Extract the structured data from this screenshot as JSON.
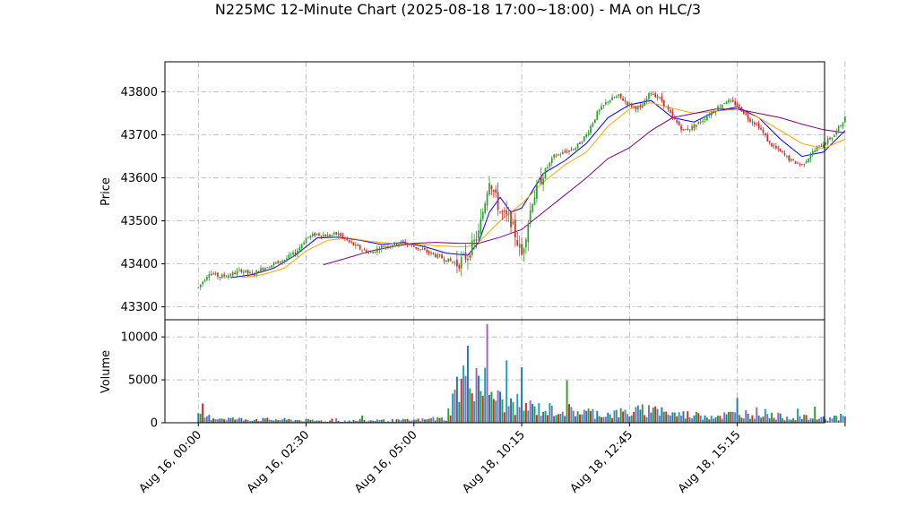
{
  "chart_data": {
    "type": "candlestick",
    "title": "N225MC 12-Minute Chart (2025-08-18 17:00~18:00) - MA on HLC/3",
    "price_panel": {
      "ylabel": "Price",
      "ylim": [
        43270,
        43870
      ],
      "yticks": [
        43300,
        43400,
        43500,
        43600,
        43700,
        43800
      ],
      "ytick_labels": [
        "43300",
        "43400",
        "43500",
        "43600",
        "43700",
        "43800"
      ]
    },
    "volume_panel": {
      "ylabel": "Volume",
      "ylim": [
        0,
        12000
      ],
      "yticks": [
        0,
        5000,
        10000
      ],
      "ytick_labels": [
        "0",
        "5000",
        "10000"
      ]
    },
    "xaxis": {
      "xlim": [
        -15.5,
        290.5
      ],
      "ticks": [
        0,
        50,
        100,
        150,
        200,
        250,
        300
      ],
      "tick_labels": [
        "Aug 16, 00:00",
        "Aug 16, 02:30",
        "Aug 16, 05:00",
        "Aug 18, 10:15",
        "Aug 18, 12:45",
        "Aug 18, 15:15",
        ""
      ]
    },
    "grid": true,
    "colors": {
      "up": "#2ca02c",
      "down": "#d62728",
      "ma_short": "#0000ff",
      "ma_mid": "#ffa500",
      "ma_long": "#800080",
      "volume_palette": [
        "#1f77b4",
        "#2ca02c",
        "#d62728",
        "#17a2b8",
        "#9467bd"
      ]
    },
    "ohlc_anchors": [
      [
        0,
        43345
      ],
      [
        5,
        43380
      ],
      [
        10,
        43370
      ],
      [
        15,
        43375
      ],
      [
        20,
        43385
      ],
      [
        25,
        43375
      ],
      [
        30,
        43390
      ],
      [
        35,
        43400
      ],
      [
        40,
        43410
      ],
      [
        45,
        43425
      ],
      [
        50,
        43460
      ],
      [
        55,
        43470
      ],
      [
        60,
        43465
      ],
      [
        65,
        43470
      ],
      [
        70,
        43450
      ],
      [
        75,
        43435
      ],
      [
        80,
        43425
      ],
      [
        85,
        43440
      ],
      [
        90,
        43445
      ],
      [
        95,
        43450
      ],
      [
        100,
        43440
      ],
      [
        105,
        43430
      ],
      [
        110,
        43420
      ],
      [
        115,
        43410
      ],
      [
        120,
        43400
      ],
      [
        125,
        43420
      ],
      [
        130,
        43470
      ],
      [
        135,
        43600
      ],
      [
        140,
        43520
      ],
      [
        145,
        43500
      ],
      [
        150,
        43420
      ],
      [
        155,
        43550
      ],
      [
        160,
        43610
      ],
      [
        165,
        43650
      ],
      [
        170,
        43660
      ],
      [
        175,
        43670
      ],
      [
        180,
        43700
      ],
      [
        185,
        43750
      ],
      [
        190,
        43780
      ],
      [
        195,
        43790
      ],
      [
        200,
        43770
      ],
      [
        205,
        43760
      ],
      [
        210,
        43800
      ],
      [
        215,
        43780
      ],
      [
        220,
        43740
      ],
      [
        225,
        43710
      ],
      [
        230,
        43720
      ],
      [
        235,
        43740
      ],
      [
        240,
        43760
      ],
      [
        245,
        43780
      ],
      [
        250,
        43770
      ],
      [
        255,
        43740
      ],
      [
        260,
        43720
      ],
      [
        265,
        43680
      ],
      [
        270,
        43660
      ],
      [
        275,
        43640
      ],
      [
        280,
        43630
      ],
      [
        285,
        43660
      ],
      [
        290,
        43680
      ],
      [
        295,
        43700
      ],
      [
        300,
        43740
      ]
    ],
    "volume_anchors": [
      [
        0,
        700
      ],
      [
        20,
        400
      ],
      [
        40,
        350
      ],
      [
        60,
        200
      ],
      [
        80,
        250
      ],
      [
        100,
        300
      ],
      [
        115,
        500
      ],
      [
        120,
        4000
      ],
      [
        125,
        6000
      ],
      [
        130,
        5500
      ],
      [
        135,
        4000
      ],
      [
        140,
        2500
      ],
      [
        150,
        2000
      ],
      [
        160,
        1500
      ],
      [
        170,
        1500
      ],
      [
        180,
        1200
      ],
      [
        190,
        1000
      ],
      [
        200,
        1200
      ],
      [
        210,
        1500
      ],
      [
        220,
        1000
      ],
      [
        230,
        900
      ],
      [
        240,
        800
      ],
      [
        250,
        1000
      ],
      [
        260,
        1200
      ],
      [
        270,
        700
      ],
      [
        280,
        600
      ],
      [
        290,
        500
      ],
      [
        300,
        700
      ]
    ],
    "moving_averages": [
      {
        "color_key": "ma_short",
        "points": [
          [
            15,
            43368
          ],
          [
            25,
            43375
          ],
          [
            35,
            43390
          ],
          [
            45,
            43420
          ],
          [
            55,
            43460
          ],
          [
            65,
            43462
          ],
          [
            75,
            43455
          ],
          [
            85,
            43445
          ],
          [
            95,
            43450
          ],
          [
            105,
            43440
          ],
          [
            115,
            43425
          ],
          [
            125,
            43420
          ],
          [
            130,
            43450
          ],
          [
            135,
            43520
          ],
          [
            140,
            43555
          ],
          [
            145,
            43520
          ],
          [
            150,
            43530
          ],
          [
            160,
            43610
          ],
          [
            170,
            43640
          ],
          [
            180,
            43680
          ],
          [
            190,
            43740
          ],
          [
            200,
            43770
          ],
          [
            210,
            43780
          ],
          [
            220,
            43740
          ],
          [
            230,
            43730
          ],
          [
            240,
            43755
          ],
          [
            250,
            43765
          ],
          [
            260,
            43740
          ],
          [
            270,
            43690
          ],
          [
            280,
            43650
          ],
          [
            290,
            43660
          ],
          [
            300,
            43710
          ]
        ]
      },
      {
        "color_key": "ma_mid",
        "points": [
          [
            20,
            43368
          ],
          [
            30,
            43375
          ],
          [
            40,
            43390
          ],
          [
            50,
            43430
          ],
          [
            60,
            43455
          ],
          [
            70,
            43460
          ],
          [
            80,
            43452
          ],
          [
            90,
            43448
          ],
          [
            100,
            43447
          ],
          [
            110,
            43442
          ],
          [
            120,
            43440
          ],
          [
            125,
            43440
          ],
          [
            130,
            43450
          ],
          [
            140,
            43500
          ],
          [
            150,
            43540
          ],
          [
            160,
            43590
          ],
          [
            170,
            43630
          ],
          [
            180,
            43660
          ],
          [
            190,
            43720
          ],
          [
            200,
            43760
          ],
          [
            210,
            43775
          ],
          [
            220,
            43762
          ],
          [
            230,
            43750
          ],
          [
            240,
            43755
          ],
          [
            250,
            43760
          ],
          [
            260,
            43740
          ],
          [
            270,
            43710
          ],
          [
            280,
            43680
          ],
          [
            290,
            43668
          ],
          [
            300,
            43690
          ]
        ]
      },
      {
        "color_key": "ma_long",
        "points": [
          [
            58,
            43398
          ],
          [
            70,
            43415
          ],
          [
            80,
            43430
          ],
          [
            90,
            43440
          ],
          [
            100,
            43448
          ],
          [
            110,
            43450
          ],
          [
            120,
            43448
          ],
          [
            130,
            43448
          ],
          [
            140,
            43462
          ],
          [
            150,
            43480
          ],
          [
            160,
            43520
          ],
          [
            170,
            43560
          ],
          [
            180,
            43600
          ],
          [
            190,
            43645
          ],
          [
            200,
            43670
          ],
          [
            210,
            43710
          ],
          [
            220,
            43740
          ],
          [
            230,
            43750
          ],
          [
            240,
            43760
          ],
          [
            250,
            43760
          ],
          [
            260,
            43750
          ],
          [
            270,
            43740
          ],
          [
            280,
            43725
          ],
          [
            290,
            43712
          ],
          [
            300,
            43705
          ]
        ]
      }
    ]
  }
}
